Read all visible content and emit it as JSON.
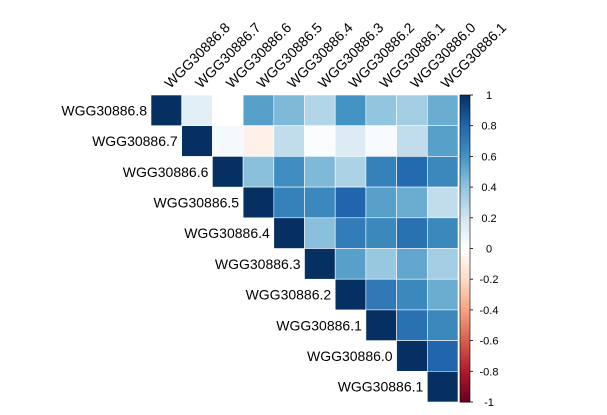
{
  "chart_data": {
    "type": "heatmap",
    "subtype": "correlation-matrix-upper",
    "row_labels": [
      "WGG30886.8",
      "WGG30886.7",
      "WGG30886.6",
      "WGG30886.5",
      "WGG30886.4",
      "WGG30886.3",
      "WGG30886.2",
      "WGG30886.1",
      "WGG30886.0",
      "WGG30886.1"
    ],
    "col_labels": [
      "WGG30886.8",
      "WGG30886.7",
      "WGG30886.6",
      "WGG30886.5",
      "WGG30886.4",
      "WGG30886.3",
      "WGG30886.2",
      "WGG30886.1",
      "WGG30886.0",
      "WGG30886.1"
    ],
    "matrix": [
      [
        1,
        0.12,
        0.0,
        0.55,
        0.45,
        0.3,
        0.6,
        0.4,
        0.35,
        0.5
      ],
      [
        null,
        1,
        0.05,
        -0.08,
        0.25,
        0.02,
        0.15,
        0.03,
        0.25,
        0.55
      ],
      [
        null,
        null,
        1,
        0.42,
        0.62,
        0.45,
        0.32,
        0.68,
        0.78,
        0.65
      ],
      [
        null,
        null,
        null,
        1,
        0.68,
        0.65,
        0.8,
        0.55,
        0.5,
        0.25
      ],
      [
        null,
        null,
        null,
        null,
        1,
        0.42,
        0.7,
        0.65,
        0.75,
        0.65
      ],
      [
        null,
        null,
        null,
        null,
        null,
        1,
        0.55,
        0.38,
        0.52,
        0.35
      ],
      [
        null,
        null,
        null,
        null,
        null,
        null,
        1,
        0.72,
        0.65,
        0.5
      ],
      [
        null,
        null,
        null,
        null,
        null,
        null,
        null,
        1,
        0.75,
        0.65
      ],
      [
        null,
        null,
        null,
        null,
        null,
        null,
        null,
        null,
        1,
        0.8
      ],
      [
        null,
        null,
        null,
        null,
        null,
        null,
        null,
        null,
        null,
        1
      ]
    ],
    "colorbar": {
      "range": [
        -1,
        1
      ],
      "ticks": [
        "1",
        "0.8",
        "0.6",
        "0.4",
        "0.2",
        "0",
        "-0.2",
        "-0.4",
        "-0.6",
        "-0.8",
        "-1"
      ],
      "tick_values": [
        1,
        0.8,
        0.6,
        0.4,
        0.2,
        0,
        -0.2,
        -0.4,
        -0.6,
        -0.8,
        -1
      ],
      "palette": [
        "#67001F",
        "#B2182B",
        "#D6604D",
        "#F4A582",
        "#FDDBC7",
        "#FFFFFF",
        "#D1E5F0",
        "#92C5DE",
        "#4393C3",
        "#2166AC",
        "#053061"
      ]
    },
    "title": "",
    "xlabel": "",
    "ylabel": "",
    "grid": true,
    "legend_position": "right"
  }
}
